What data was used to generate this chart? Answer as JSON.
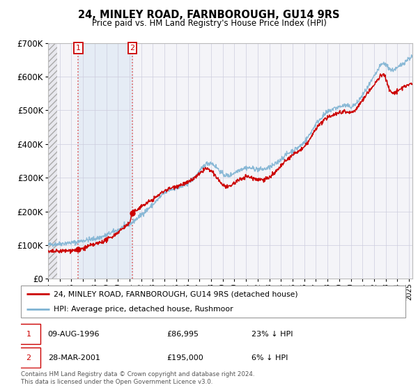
{
  "title": "24, MINLEY ROAD, FARNBOROUGH, GU14 9RS",
  "subtitle": "Price paid vs. HM Land Registry's House Price Index (HPI)",
  "sale1_date": 1996.6,
  "sale1_price": 86995,
  "sale1_label": "1",
  "sale1_text": "09-AUG-1996",
  "sale1_price_text": "£86,995",
  "sale1_hpi_text": "23% ↓ HPI",
  "sale2_date": 2001.23,
  "sale2_price": 195000,
  "sale2_label": "2",
  "sale2_text": "28-MAR-2001",
  "sale2_price_text": "£195,000",
  "sale2_hpi_text": "6% ↓ HPI",
  "xmin": 1994.0,
  "xmax": 2025.3,
  "ymin": 0,
  "ymax": 700000,
  "yticks": [
    0,
    100000,
    200000,
    300000,
    400000,
    500000,
    600000,
    700000
  ],
  "red_line_color": "#cc0000",
  "blue_line_color": "#7fb3d3",
  "legend_line1": "24, MINLEY ROAD, FARNBOROUGH, GU14 9RS (detached house)",
  "legend_line2": "HPI: Average price, detached house, Rushmoor",
  "footnote": "Contains HM Land Registry data © Crown copyright and database right 2024.\nThis data is licensed under the Open Government Licence v3.0.",
  "background_color": "#ffffff",
  "plot_bg_color": "#f4f4f8",
  "hatch_color": "#e0e0e8",
  "grid_color": "#ccccdd",
  "shade_color": "#dce8f4"
}
